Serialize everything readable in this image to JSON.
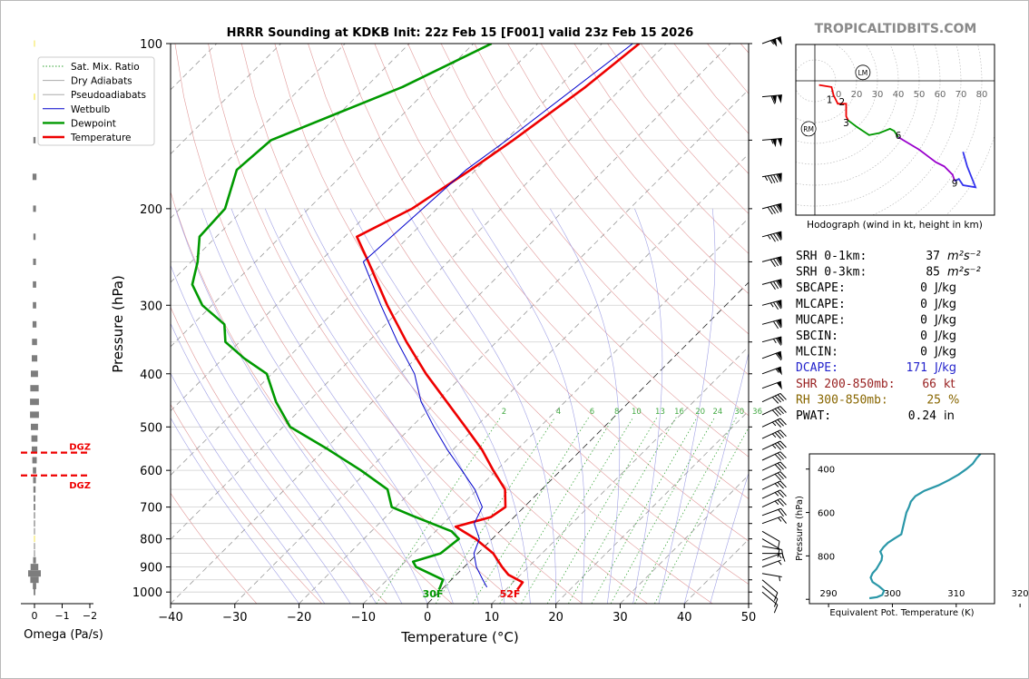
{
  "header": {
    "title": "HRRR Sounding at KDKB Init: 22z Feb 15 [F001] valid 23z Feb 15 2026",
    "watermark": "TROPICALTIDBITS.COM"
  },
  "chart_data": [
    {
      "type": "line",
      "name": "skewt",
      "xlabel": "Temperature (°C)",
      "ylabel": "Pressure (hPa)",
      "xlim": [
        -40,
        50
      ],
      "ylim": [
        1050,
        100
      ],
      "y_scale": "log",
      "skew": "isotherms slope 45°",
      "x_ticks": [
        "−40",
        "−30",
        "−20",
        "−10",
        "0",
        "10",
        "20",
        "30",
        "40",
        "50"
      ],
      "y_ticks": [
        "100",
        "200",
        "300",
        "400",
        "500",
        "600",
        "700",
        "800",
        "900",
        "1000"
      ],
      "mixing_ratio_labels": [
        "2",
        "4",
        "6",
        "8",
        "10",
        "13",
        "16",
        "20",
        "24",
        "30",
        "36"
      ],
      "legend": {
        "placement": "top-left",
        "entries": [
          {
            "label": "Sat. Mix. Ratio",
            "color": "#2ca02c",
            "style": "dotted"
          },
          {
            "label": "Dry Adiabats",
            "color": "#aaaaaa",
            "style": "solid"
          },
          {
            "label": "Pseudoadiabats",
            "color": "#aaaaaa",
            "style": "solid"
          },
          {
            "label": "Wetbulb",
            "color": "#0000cc",
            "style": "solid"
          },
          {
            "label": "Dewpoint",
            "color": "#009900",
            "style": "solid"
          },
          {
            "label": "Temperature",
            "color": "#ee0000",
            "style": "solid"
          }
        ]
      },
      "series": [
        {
          "name": "Temperature",
          "color": "#ee0000",
          "points": [
            [
              100,
              -54.2
            ],
            [
              120,
              -55.8
            ],
            [
              150,
              -58.8
            ],
            [
              170,
              -60.8
            ],
            [
              200,
              -63.9
            ],
            [
              225,
              -68.1
            ],
            [
              250,
              -62.4
            ],
            [
              300,
              -52.7
            ],
            [
              350,
              -44.0
            ],
            [
              400,
              -36.0
            ],
            [
              450,
              -28.4
            ],
            [
              500,
              -21.6
            ],
            [
              550,
              -15.5
            ],
            [
              600,
              -10.5
            ],
            [
              650,
              -5.7
            ],
            [
              700,
              -2.9
            ],
            [
              730,
              -3.6
            ],
            [
              760,
              -7.6
            ],
            [
              800,
              -2.6
            ],
            [
              850,
              2.4
            ],
            [
              900,
              5.9
            ],
            [
              930,
              8.1
            ],
            [
              960,
              11.5
            ],
            [
              990,
              11.8
            ]
          ]
        },
        {
          "name": "Dewpoint",
          "color": "#009900",
          "points": [
            [
              100,
              -77.2
            ],
            [
              120,
              -84.3
            ],
            [
              150,
              -96.5
            ],
            [
              170,
              -97.2
            ],
            [
              200,
              -93.0
            ],
            [
              225,
              -92.6
            ],
            [
              250,
              -89.0
            ],
            [
              275,
              -86.3
            ],
            [
              300,
              -81.5
            ],
            [
              325,
              -75.1
            ],
            [
              350,
              -72.2
            ],
            [
              375,
              -66.7
            ],
            [
              400,
              -60.8
            ],
            [
              450,
              -55.0
            ],
            [
              500,
              -48.9
            ],
            [
              550,
              -39.4
            ],
            [
              600,
              -31.1
            ],
            [
              650,
              -24.0
            ],
            [
              700,
              -20.6
            ],
            [
              725,
              -16.2
            ],
            [
              775,
              -7.5
            ],
            [
              800,
              -5.2
            ],
            [
              850,
              -5.8
            ],
            [
              880,
              -8.8
            ],
            [
              900,
              -7.5
            ],
            [
              950,
              -1.3
            ],
            [
              980,
              -0.6
            ],
            [
              990,
              -0.4
            ]
          ]
        },
        {
          "name": "Wetbulb",
          "color": "#0000cc",
          "points": [
            [
              100,
              -55.2
            ],
            [
              150,
              -59.8
            ],
            [
              170,
              -61.5
            ],
            [
              250,
              -63.2
            ],
            [
              300,
              -53.7
            ],
            [
              350,
              -45.4
            ],
            [
              400,
              -37.8
            ],
            [
              450,
              -32.4
            ],
            [
              500,
              -26.5
            ],
            [
              550,
              -20.9
            ],
            [
              600,
              -15.4
            ],
            [
              650,
              -10.4
            ],
            [
              700,
              -6.5
            ],
            [
              750,
              -5.2
            ],
            [
              800,
              -2.0
            ],
            [
              850,
              -0.6
            ],
            [
              900,
              1.9
            ],
            [
              950,
              4.9
            ],
            [
              980,
              6.7
            ]
          ]
        }
      ],
      "surface_labels": {
        "dewpoint": "30F",
        "temperature": "52F"
      }
    },
    {
      "type": "bar",
      "name": "omega",
      "xlabel": "Omega (Pa/s)",
      "x_ticks": [
        "0",
        "−1",
        "−2"
      ],
      "xlim": [
        0.3,
        -2
      ],
      "dgz_label": "DGZ",
      "dgz_pressures": [
        557,
        613
      ],
      "levels": [
        [
          100,
          0.02
        ],
        [
          125,
          0.04
        ],
        [
          150,
          0.08
        ],
        [
          175,
          0.14
        ],
        [
          200,
          0.1
        ],
        [
          225,
          0.08
        ],
        [
          250,
          0.1
        ],
        [
          275,
          0.12
        ],
        [
          300,
          0.12
        ],
        [
          325,
          0.14
        ],
        [
          350,
          0.18
        ],
        [
          375,
          0.2
        ],
        [
          400,
          0.26
        ],
        [
          425,
          0.3
        ],
        [
          450,
          0.32
        ],
        [
          475,
          0.32
        ],
        [
          500,
          0.26
        ],
        [
          525,
          0.22
        ],
        [
          550,
          0.2
        ],
        [
          575,
          0.16
        ],
        [
          600,
          0.12
        ],
        [
          625,
          0.1
        ],
        [
          650,
          0.08
        ],
        [
          675,
          0.06
        ],
        [
          700,
          0.06
        ],
        [
          725,
          0.04
        ],
        [
          750,
          0.04
        ],
        [
          775,
          0.02
        ],
        [
          800,
          0.02
        ],
        [
          825,
          0.02
        ],
        [
          850,
          0.02
        ],
        [
          875,
          0.1
        ],
        [
          900,
          0.28
        ],
        [
          925,
          0.46
        ],
        [
          950,
          0.3
        ],
        [
          975,
          0.12
        ],
        [
          1000,
          0.06
        ]
      ]
    },
    {
      "type": "line",
      "name": "hodograph",
      "xlabel": "Hodograph (wind in kt, height in km)",
      "ring_labels": [
        "10",
        "20",
        "30",
        "40",
        "50",
        "60",
        "70",
        "80"
      ],
      "storm_markers": [
        {
          "label": "LM",
          "u": 23,
          "v": 4
        },
        {
          "label": "RM",
          "u": -3,
          "v": -23
        }
      ],
      "height_labels": [
        {
          "label": "1",
          "u": 7,
          "v": -9
        },
        {
          "label": "2",
          "u": 13,
          "v": -10
        },
        {
          "label": "3",
          "u": 15,
          "v": -20
        },
        {
          "label": "6",
          "u": 40,
          "v": -26
        },
        {
          "label": "9",
          "u": 67,
          "v": -49
        }
      ],
      "segments": [
        {
          "color": "#ee0000",
          "points": [
            [
              2,
              -2
            ],
            [
              8,
              -3
            ],
            [
              9,
              -7
            ],
            [
              11,
              -11
            ],
            [
              15,
              -11
            ],
            [
              15,
              -17
            ],
            [
              16,
              -19
            ]
          ]
        },
        {
          "color": "#009900",
          "points": [
            [
              16,
              -19
            ],
            [
              20,
              -22
            ],
            [
              26,
              -26
            ],
            [
              31,
              -25
            ],
            [
              36,
              -23
            ],
            [
              38,
              -24
            ],
            [
              40,
              -27
            ]
          ]
        },
        {
          "color": "#9900cc",
          "points": [
            [
              40,
              -27
            ],
            [
              45,
              -30
            ],
            [
              50,
              -33
            ],
            [
              54,
              -36
            ],
            [
              58,
              -39
            ],
            [
              62,
              -41
            ],
            [
              66,
              -45
            ],
            [
              67,
              -48
            ]
          ]
        },
        {
          "color": "#3333ee",
          "points": [
            [
              67,
              -48
            ],
            [
              69,
              -47
            ],
            [
              71,
              -50
            ],
            [
              77,
              -51
            ],
            [
              75,
              -46
            ],
            [
              73,
              -41
            ],
            [
              71,
              -34
            ]
          ]
        }
      ]
    },
    {
      "type": "line",
      "name": "theta_e",
      "xlabel": "Equivalent Pot. Temperature (K)",
      "ylabel": "Pressure (hPa)",
      "x_ticks": [
        "290",
        "300",
        "310",
        "320"
      ],
      "y_ticks": [
        "400",
        "600",
        "800",
        ""
      ],
      "xlim": [
        287,
        316
      ],
      "ylim": [
        1020,
        330
      ],
      "series": [
        {
          "name": "theta-e",
          "color": "#2a97a8",
          "points": [
            [
              330,
              313.8
            ],
            [
              350,
              313.2
            ],
            [
              375,
              312.6
            ],
            [
              400,
              311.6
            ],
            [
              425,
              310.4
            ],
            [
              450,
              308.9
            ],
            [
              475,
              307.2
            ],
            [
              500,
              305.0
            ],
            [
              525,
              303.6
            ],
            [
              550,
              302.9
            ],
            [
              575,
              302.6
            ],
            [
              600,
              302.2
            ],
            [
              625,
              302.0
            ],
            [
              650,
              301.8
            ],
            [
              675,
              301.6
            ],
            [
              700,
              301.4
            ],
            [
              720,
              300.3
            ],
            [
              740,
              299.3
            ],
            [
              760,
              298.6
            ],
            [
              780,
              298.1
            ],
            [
              800,
              298.4
            ],
            [
              820,
              298.3
            ],
            [
              840,
              297.9
            ],
            [
              860,
              297.5
            ],
            [
              880,
              296.9
            ],
            [
              900,
              296.6
            ],
            [
              920,
              296.9
            ],
            [
              940,
              297.9
            ],
            [
              960,
              298.7
            ],
            [
              980,
              298.4
            ],
            [
              990,
              297.6
            ],
            [
              995,
              296.4
            ]
          ]
        }
      ]
    }
  ],
  "indices": [
    {
      "label": "SRH 0-1km:",
      "value": "37",
      "unit": "m²s⁻²",
      "color": "#000000"
    },
    {
      "label": "SRH 0-3km:",
      "value": "85",
      "unit": "m²s⁻²",
      "color": "#000000"
    },
    {
      "label": "SBCAPE:",
      "value": "0",
      "unit": "J/kg",
      "color": "#000000"
    },
    {
      "label": "MLCAPE:",
      "value": "0",
      "unit": "J/kg",
      "color": "#000000"
    },
    {
      "label": "MUCAPE:",
      "value": "0",
      "unit": "J/kg",
      "color": "#000000"
    },
    {
      "label": "SBCIN:",
      "value": "0",
      "unit": "J/kg",
      "color": "#000000"
    },
    {
      "label": "MLCIN:",
      "value": "0",
      "unit": "J/kg",
      "color": "#000000"
    },
    {
      "label": "DCAPE:",
      "value": "171",
      "unit": "J/kg",
      "color": "#2222cc"
    },
    {
      "label": "SHR 200-850mb:",
      "value": "66",
      "unit": "kt",
      "color": "#992222"
    },
    {
      "label": "RH 300-850mb:",
      "value": "25",
      "unit": "%",
      "color": "#886600"
    },
    {
      "label": "PWAT:",
      "value": "0.24",
      "unit": "in",
      "color": "#000000"
    }
  ],
  "wind_barbs": {
    "levels": [
      [
        100,
        250,
        105
      ],
      [
        125,
        265,
        110
      ],
      [
        150,
        265,
        105
      ],
      [
        175,
        260,
        95
      ],
      [
        200,
        255,
        90
      ],
      [
        225,
        255,
        85
      ],
      [
        250,
        255,
        80
      ],
      [
        275,
        255,
        80
      ],
      [
        300,
        255,
        75
      ],
      [
        325,
        255,
        70
      ],
      [
        350,
        255,
        65
      ],
      [
        375,
        250,
        60
      ],
      [
        400,
        250,
        55
      ],
      [
        425,
        250,
        50
      ],
      [
        450,
        245,
        40
      ],
      [
        475,
        245,
        40
      ],
      [
        500,
        245,
        35
      ],
      [
        525,
        245,
        35
      ],
      [
        550,
        245,
        35
      ],
      [
        575,
        245,
        30
      ],
      [
        600,
        245,
        30
      ],
      [
        625,
        245,
        30
      ],
      [
        650,
        245,
        25
      ],
      [
        675,
        245,
        25
      ],
      [
        700,
        245,
        25
      ],
      [
        725,
        250,
        20
      ],
      [
        750,
        250,
        15
      ],
      [
        775,
        300,
        10
      ],
      [
        800,
        300,
        10
      ],
      [
        825,
        280,
        10
      ],
      [
        850,
        270,
        10
      ],
      [
        875,
        250,
        5
      ],
      [
        900,
        250,
        5
      ],
      [
        925,
        280,
        5
      ],
      [
        950,
        310,
        10
      ],
      [
        975,
        310,
        10
      ],
      [
        1000,
        310,
        10
      ]
    ]
  }
}
